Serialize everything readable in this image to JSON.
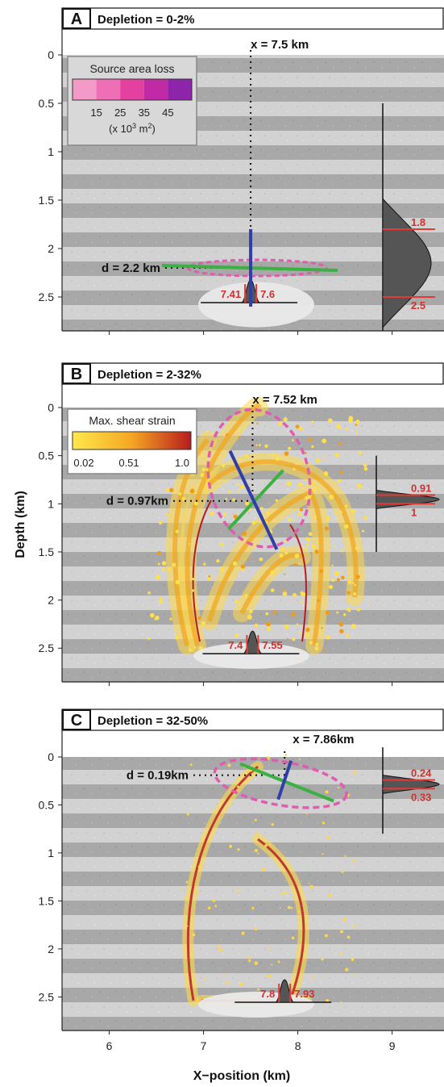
{
  "ylabel": "Depth (km)",
  "xlabel": "X−position (km)",
  "colors": {
    "strain_low": "#ffe04a",
    "strain_mid": "#f39c12",
    "strain_high": "#b71c1c",
    "green_axis": "#3cb043",
    "blue_axis": "#2f3fa8",
    "ellipse": "#e05cb0",
    "marker_red": "#e53935"
  },
  "chart_data": [
    {
      "type": "heatmap",
      "panel": "A",
      "title": "Depletion = 0-2%",
      "x_range": [
        5.5,
        9.55
      ],
      "y_range": [
        0,
        2.85
      ],
      "x_ticks": [
        "6",
        "7",
        "8",
        "9"
      ],
      "y_ticks": [
        "0",
        "0.5",
        "1",
        "1.5",
        "2",
        "2.5"
      ],
      "source_x": 7.5,
      "source_depth": 2.2,
      "x_label_text": "x = 7.5 km",
      "d_label_text": "d = 2.2 km",
      "x_interval": [
        "7.41",
        "7.6"
      ],
      "d_interval": [
        "1.8",
        "2.5"
      ],
      "legend": {
        "title": "Source area loss",
        "ticks": [
          "15",
          "25",
          "35",
          "45"
        ],
        "unit_prefix": "(x 10",
        "unit_exp": "3",
        "unit_suffix": " m",
        "unit_exp2": "2",
        "unit_close": ")",
        "colors": [
          "#f49ac8",
          "#ee6fb6",
          "#e3409f",
          "#c02aa4",
          "#8e24aa"
        ]
      }
    },
    {
      "type": "heatmap",
      "panel": "B",
      "title": "Depletion = 2-32%",
      "x_range": [
        5.5,
        9.55
      ],
      "y_range": [
        0,
        2.85
      ],
      "x_ticks": [
        "6",
        "7",
        "8",
        "9"
      ],
      "y_ticks": [
        "0",
        "0.5",
        "1",
        "1.5",
        "2",
        "2.5"
      ],
      "source_x": 7.52,
      "source_depth": 0.97,
      "x_label_text": "x = 7.52 km",
      "d_label_text": "d = 0.97km",
      "x_interval": [
        "7.4",
        "7.55"
      ],
      "d_interval": [
        "0.91",
        "1"
      ],
      "legend": {
        "title": "Max. shear strain",
        "ticks": [
          "0.02",
          "0.51",
          "1.0"
        ]
      }
    },
    {
      "type": "heatmap",
      "panel": "C",
      "title": "Depletion = 32-50%",
      "x_range": [
        5.5,
        9.55
      ],
      "y_range": [
        0,
        2.85
      ],
      "x_ticks": [
        "6",
        "7",
        "8",
        "9"
      ],
      "y_ticks": [
        "0",
        "0.5",
        "1",
        "1.5",
        "2",
        "2.5"
      ],
      "source_x": 7.86,
      "source_depth": 0.19,
      "x_label_text": "x = 7.86km",
      "d_label_text": "d = 0.19km",
      "x_interval": [
        "7.8",
        "7.93"
      ],
      "d_interval": [
        "0.24",
        "0.33"
      ]
    }
  ]
}
